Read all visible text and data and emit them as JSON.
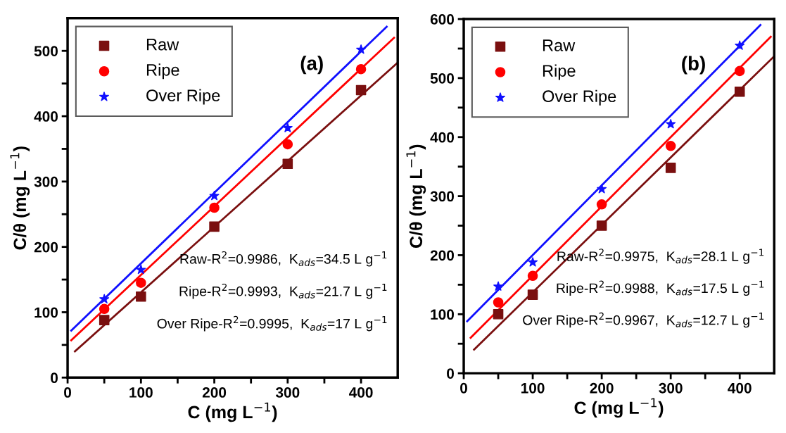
{
  "chart_data": [
    {
      "type": "scatter",
      "xlabel": "C (mg L$^{−1}$)",
      "ylabel": "C/θ (mg L$^{−1}$)",
      "xlim": [
        0,
        450
      ],
      "ylim": [
        0,
        550
      ],
      "xticks": [
        0,
        {
          "value": 50,
          "label": null
        },
        100,
        {
          "value": 150,
          "label": null
        },
        200,
        {
          "value": 250,
          "label": null
        },
        300,
        {
          "value": 350,
          "label": null
        },
        400
      ],
      "yticks": [
        0,
        {
          "value": 50,
          "label": null
        },
        100,
        {
          "value": 150,
          "label": null
        },
        200,
        {
          "value": 250,
          "label": null
        },
        300,
        {
          "value": 350,
          "label": null
        },
        400,
        {
          "value": 450,
          "label": null
        },
        500
      ],
      "legend": "top left",
      "grid": false,
      "x": [
        50,
        100,
        200,
        300,
        400
      ],
      "series": [
        {
          "name": "Raw",
          "color": "#7a0f0f",
          "marker": "square",
          "values": [
            88,
            124,
            231,
            327,
            440
          ]
        },
        {
          "name": "Ripe",
          "color": "#ff0000",
          "marker": "circle",
          "values": [
            105,
            145,
            260,
            357,
            472
          ]
        },
        {
          "name": "Over Ripe",
          "color": "#1010ff",
          "marker": "star",
          "values": [
            120,
            165,
            278,
            382,
            502
          ]
        },
        {
          "type": "line",
          "color": "#7a0f0f",
          "x": [
            10,
            450
          ],
          "values": [
            40,
            482
          ]
        },
        {
          "type": "line",
          "color": "#ff0000",
          "x": [
            5,
            445
          ],
          "values": [
            57,
            520
          ]
        },
        {
          "type": "line",
          "color": "#1010ff",
          "x": [
            5,
            435
          ],
          "values": [
            72,
            537
          ]
        }
      ],
      "annotations": [
        "(a)",
        "Raw-R$^{2}$=0.9986,  K$_{ads}$=34.5 L g$^{−1}$",
        "Ripe-R$^{2}$=0.9993,  K$_{ads}$=21.7 L g$^{−1}$",
        "Over Ripe-R$^{2}$=0.9995,  K$_{ads}$=17 L g$^{−1}$"
      ]
    },
    {
      "type": "scatter",
      "xlabel": "C (mg L$^{−1}$)",
      "ylabel": "C/θ (mg L$^{−1}$)",
      "xlim": [
        0,
        450
      ],
      "ylim": [
        0,
        600
      ],
      "xticks": [
        0,
        {
          "value": 50,
          "label": null
        },
        100,
        {
          "value": 150,
          "label": null
        },
        200,
        {
          "value": 250,
          "label": null
        },
        300,
        {
          "value": 350,
          "label": null
        },
        400
      ],
      "yticks": [
        0,
        {
          "value": 50,
          "label": null
        },
        100,
        {
          "value": 150,
          "label": null
        },
        200,
        {
          "value": 250,
          "label": null
        },
        300,
        {
          "value": 350,
          "label": null
        },
        400,
        {
          "value": 450,
          "label": null
        },
        500,
        {
          "value": 550,
          "label": null
        },
        600
      ],
      "legend": "top left",
      "grid": false,
      "x": [
        50,
        100,
        200,
        300,
        400
      ],
      "series": [
        {
          "name": "Raw",
          "color": "#7a0f0f",
          "marker": "square",
          "values": [
            100,
            133,
            250,
            348,
            477
          ]
        },
        {
          "name": "Ripe",
          "color": "#ff0000",
          "marker": "circle",
          "values": [
            120,
            165,
            286,
            385,
            512
          ]
        },
        {
          "name": "Over Ripe",
          "color": "#1010ff",
          "marker": "star",
          "values": [
            147,
            188,
            312,
            422,
            555
          ]
        },
        {
          "type": "line",
          "color": "#7a0f0f",
          "x": [
            15,
            450
          ],
          "values": [
            40,
            537
          ]
        },
        {
          "type": "line",
          "color": "#ff0000",
          "x": [
            10,
            445
          ],
          "values": [
            60,
            570
          ]
        },
        {
          "type": "line",
          "color": "#1010ff",
          "x": [
            5,
            430
          ],
          "values": [
            88,
            590
          ]
        }
      ],
      "annotations": [
        "(b)",
        "Raw-R$^{2}$=0.9975,  K$_{ads}$=28.1 L g$^{−1}$",
        "Ripe-R$^{2}$=0.9988,  K$_{ads}$=17.5 L g$^{−1}$",
        "Over Ripe-R$^{2}$=0.9967,  K$_{ads}$=12.7 L g$^{−1}$"
      ]
    }
  ]
}
